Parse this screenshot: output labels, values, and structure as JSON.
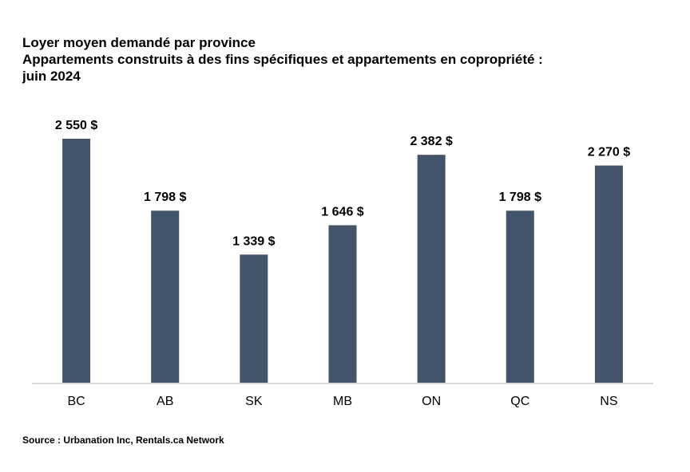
{
  "chart_data": {
    "type": "bar",
    "title": "Loyer moyen demandé par province",
    "subtitle_line1": "Appartements construits à des fins spécifiques et appartements en copropriété :",
    "subtitle_line2": "juin 2024",
    "categories": [
      "BC",
      "AB",
      "SK",
      "MB",
      "ON",
      "QC",
      "NS"
    ],
    "values": [
      2550,
      1798,
      1339,
      1646,
      2382,
      1798,
      2270
    ],
    "data_labels": [
      "2 550 $",
      "1 798 $",
      "1 339 $",
      "1 646 $",
      "2 382 $",
      "1 798 $",
      "2 270 $"
    ],
    "xlabel": "",
    "ylabel": "",
    "ylim": [
      0,
      2550
    ],
    "grid": false,
    "bar_color": "#44546a",
    "axis_color": "#d9d9d9"
  },
  "source": "Source : Urbanation Inc, Rentals.ca Network"
}
